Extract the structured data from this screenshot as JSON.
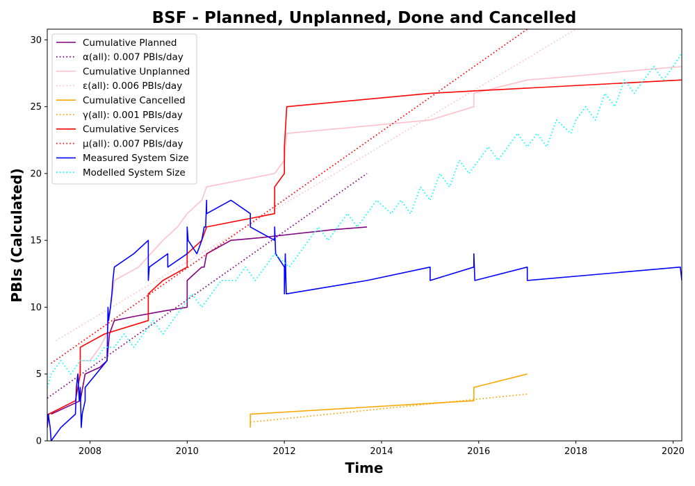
{
  "chart_data": {
    "type": "line",
    "title": "BSF - Planned, Unplanned, Done  and Cancelled",
    "xlabel": "Time",
    "ylabel": "PBIs (Calculated)",
    "xlim": [
      2007.12,
      2020.18
    ],
    "ylim": [
      0,
      30.8
    ],
    "x_ticks": [
      2008,
      2010,
      2012,
      2014,
      2016,
      2018,
      2020
    ],
    "y_ticks": [
      0,
      5,
      10,
      15,
      20,
      25,
      30
    ],
    "legend_position": "top-left",
    "series": [
      {
        "name": "Cumulative Planned",
        "color": "#800080",
        "style": "solid",
        "points": [
          [
            2007.2,
            2
          ],
          [
            2007.8,
            3
          ],
          [
            2007.9,
            5
          ],
          [
            2008.2,
            5.5
          ],
          [
            2008.35,
            6
          ],
          [
            2008.4,
            8
          ],
          [
            2008.5,
            9
          ],
          [
            2008.9,
            9.3
          ],
          [
            2009.5,
            9.7
          ],
          [
            2010.0,
            10
          ],
          [
            2010.0,
            12
          ],
          [
            2010.3,
            13
          ],
          [
            2010.35,
            13
          ],
          [
            2010.4,
            14
          ],
          [
            2010.9,
            15
          ],
          [
            2011.5,
            15.2
          ],
          [
            2012.0,
            15.4
          ],
          [
            2013.0,
            15.8
          ],
          [
            2013.7,
            16
          ]
        ]
      },
      {
        "name": "α(all): 0.007 PBIs/day",
        "color": "#800080",
        "style": "dotted",
        "points": [
          [
            2007.12,
            3.2
          ],
          [
            2013.7,
            20
          ]
        ]
      },
      {
        "name": "Cumulative Unplanned",
        "color": "#ffc0cb",
        "style": "solid",
        "points": [
          [
            2007.75,
            4
          ],
          [
            2007.8,
            6
          ],
          [
            2008.0,
            6
          ],
          [
            2008.2,
            7
          ],
          [
            2008.35,
            8
          ],
          [
            2008.5,
            12
          ],
          [
            2009.0,
            13
          ],
          [
            2009.5,
            15
          ],
          [
            2009.8,
            16
          ],
          [
            2010.0,
            17
          ],
          [
            2010.3,
            18
          ],
          [
            2010.4,
            19
          ],
          [
            2011.8,
            20
          ],
          [
            2012.0,
            21
          ],
          [
            2012.05,
            23
          ],
          [
            2015.0,
            24
          ],
          [
            2015.9,
            25
          ],
          [
            2015.9,
            26
          ],
          [
            2017.0,
            27
          ],
          [
            2018.0,
            27.3
          ],
          [
            2019.5,
            27.8
          ],
          [
            2020.18,
            28
          ]
        ]
      },
      {
        "name": "ε(all): 0.006 PBIs/day",
        "color": "#ffc0cb",
        "style": "dotted",
        "points": [
          [
            2007.3,
            7.5
          ],
          [
            2018.0,
            30.8
          ]
        ]
      },
      {
        "name": "Cumulative Cancelled",
        "color": "#ffa500",
        "style": "solid",
        "points": [
          [
            2011.3,
            1
          ],
          [
            2011.3,
            2
          ],
          [
            2015.9,
            3
          ],
          [
            2015.9,
            4
          ],
          [
            2017.0,
            5
          ]
        ]
      },
      {
        "name": "γ(all): 0.001 PBIs/day",
        "color": "#ffa500",
        "style": "dotted",
        "points": [
          [
            2011.3,
            1.4
          ],
          [
            2017.0,
            3.5
          ]
        ]
      },
      {
        "name": "Cumulative Services",
        "color": "#ff0000",
        "style": "solid",
        "points": [
          [
            2007.12,
            1
          ],
          [
            2007.15,
            2
          ],
          [
            2007.7,
            3
          ],
          [
            2007.8,
            5
          ],
          [
            2007.8,
            7
          ],
          [
            2008.3,
            8
          ],
          [
            2009.2,
            9
          ],
          [
            2009.2,
            11
          ],
          [
            2009.5,
            12
          ],
          [
            2010.0,
            13
          ],
          [
            2010.0,
            14
          ],
          [
            2010.3,
            15
          ],
          [
            2010.4,
            16
          ],
          [
            2011.8,
            17
          ],
          [
            2011.8,
            19
          ],
          [
            2012.0,
            20
          ],
          [
            2012.0,
            22
          ],
          [
            2012.05,
            25
          ],
          [
            2015.0,
            26
          ],
          [
            2016.0,
            26.2
          ],
          [
            2020.18,
            27
          ]
        ]
      },
      {
        "name": "μ(all): 0.007 PBIs/day",
        "color": "#ff0000",
        "style": "dotted",
        "points": [
          [
            2007.2,
            5.8
          ],
          [
            2017.0,
            30.8
          ]
        ]
      },
      {
        "name": "Measured System Size",
        "color": "#0000ff",
        "style": "solid",
        "points": [
          [
            2007.12,
            1
          ],
          [
            2007.14,
            2
          ],
          [
            2007.18,
            1
          ],
          [
            2007.2,
            0
          ],
          [
            2007.4,
            1
          ],
          [
            2007.7,
            2
          ],
          [
            2007.72,
            4
          ],
          [
            2007.75,
            5
          ],
          [
            2007.78,
            3
          ],
          [
            2007.8,
            4
          ],
          [
            2007.82,
            1
          ],
          [
            2007.84,
            2
          ],
          [
            2007.9,
            3
          ],
          [
            2007.9,
            4
          ],
          [
            2008.35,
            6
          ],
          [
            2008.37,
            10
          ],
          [
            2008.38,
            9
          ],
          [
            2008.42,
            10
          ],
          [
            2008.45,
            11
          ],
          [
            2008.47,
            12
          ],
          [
            2008.5,
            13
          ],
          [
            2008.9,
            14
          ],
          [
            2009.2,
            15
          ],
          [
            2009.2,
            12
          ],
          [
            2009.22,
            13
          ],
          [
            2009.6,
            14
          ],
          [
            2009.6,
            13
          ],
          [
            2010.0,
            14
          ],
          [
            2010.0,
            16
          ],
          [
            2010.02,
            15
          ],
          [
            2010.2,
            14
          ],
          [
            2010.3,
            15
          ],
          [
            2010.35,
            16
          ],
          [
            2010.38,
            16
          ],
          [
            2010.4,
            18
          ],
          [
            2010.4,
            17
          ],
          [
            2010.9,
            18
          ],
          [
            2011.3,
            17
          ],
          [
            2011.3,
            16
          ],
          [
            2011.8,
            15
          ],
          [
            2011.8,
            16
          ],
          [
            2011.82,
            14
          ],
          [
            2012.0,
            13
          ],
          [
            2012.0,
            11
          ],
          [
            2012.02,
            14
          ],
          [
            2012.04,
            11
          ],
          [
            2012.05,
            11
          ],
          [
            2013.7,
            12
          ],
          [
            2015.0,
            13
          ],
          [
            2015.0,
            12
          ],
          [
            2015.9,
            13
          ],
          [
            2015.9,
            14
          ],
          [
            2015.92,
            12
          ],
          [
            2017.0,
            13
          ],
          [
            2017.0,
            12
          ],
          [
            2020.15,
            13
          ],
          [
            2020.18,
            12
          ]
        ]
      },
      {
        "name": "Modelled System Size",
        "color": "#00ffff",
        "style": "dotted",
        "points": [
          [
            2007.12,
            4
          ],
          [
            2007.2,
            5
          ],
          [
            2007.4,
            6
          ],
          [
            2007.6,
            5
          ],
          [
            2007.8,
            6
          ],
          [
            2008.1,
            6
          ],
          [
            2008.3,
            7
          ],
          [
            2008.5,
            7
          ],
          [
            2008.7,
            8
          ],
          [
            2008.9,
            7
          ],
          [
            2009.1,
            8
          ],
          [
            2009.3,
            9
          ],
          [
            2009.5,
            8
          ],
          [
            2009.7,
            9
          ],
          [
            2009.9,
            10
          ],
          [
            2010.1,
            11
          ],
          [
            2010.3,
            10
          ],
          [
            2010.5,
            11
          ],
          [
            2010.7,
            12
          ],
          [
            2011.0,
            12
          ],
          [
            2011.2,
            13
          ],
          [
            2011.4,
            12
          ],
          [
            2011.6,
            13
          ],
          [
            2011.8,
            14
          ],
          [
            2012.1,
            13
          ],
          [
            2012.3,
            14
          ],
          [
            2012.5,
            15
          ],
          [
            2012.7,
            16
          ],
          [
            2012.9,
            15
          ],
          [
            2013.1,
            16
          ],
          [
            2013.3,
            17
          ],
          [
            2013.5,
            16
          ],
          [
            2013.7,
            17
          ],
          [
            2013.9,
            18
          ],
          [
            2014.2,
            17
          ],
          [
            2014.4,
            18
          ],
          [
            2014.6,
            17
          ],
          [
            2014.8,
            19
          ],
          [
            2015.0,
            18
          ],
          [
            2015.2,
            20
          ],
          [
            2015.4,
            19
          ],
          [
            2015.6,
            21
          ],
          [
            2015.8,
            20
          ],
          [
            2016.0,
            21
          ],
          [
            2016.2,
            22
          ],
          [
            2016.4,
            21
          ],
          [
            2016.6,
            22
          ],
          [
            2016.8,
            23
          ],
          [
            2017.0,
            22
          ],
          [
            2017.2,
            23
          ],
          [
            2017.4,
            22
          ],
          [
            2017.6,
            24
          ],
          [
            2017.9,
            23
          ],
          [
            2018.0,
            24
          ],
          [
            2018.2,
            25
          ],
          [
            2018.4,
            24
          ],
          [
            2018.6,
            26
          ],
          [
            2018.8,
            25
          ],
          [
            2019.0,
            27
          ],
          [
            2019.2,
            26
          ],
          [
            2019.4,
            27
          ],
          [
            2019.6,
            28
          ],
          [
            2019.8,
            27
          ],
          [
            2020.0,
            28
          ],
          [
            2020.18,
            29
          ]
        ]
      }
    ]
  }
}
